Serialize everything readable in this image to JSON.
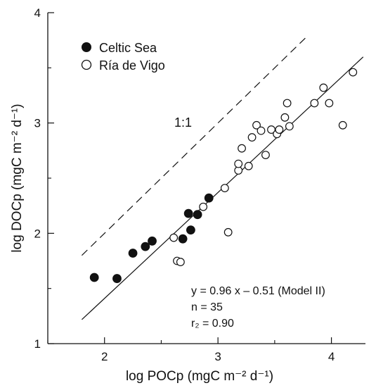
{
  "chart_data": {
    "type": "scatter",
    "xlabel": "log POCp (mgC m⁻² d⁻¹)",
    "ylabel": "log DOCp (mgC m⁻² d⁻¹)",
    "xlim": [
      1.5,
      4.3
    ],
    "ylim": [
      1.0,
      4.0
    ],
    "x_ticks": [
      2,
      3,
      4
    ],
    "y_ticks": [
      1,
      2,
      3,
      4
    ],
    "x_tick_labels": [
      "2",
      "3",
      "4"
    ],
    "y_tick_labels": [
      "1",
      "2",
      "3",
      "4"
    ],
    "grid": false,
    "legend_position": "top-left",
    "series": [
      {
        "name": "Celtic Sea",
        "marker": "filled-circle",
        "color": "#111111",
        "points": [
          [
            1.91,
            1.6
          ],
          [
            2.11,
            1.59
          ],
          [
            2.25,
            1.82
          ],
          [
            2.36,
            1.88
          ],
          [
            2.42,
            1.93
          ],
          [
            2.69,
            1.95
          ],
          [
            2.74,
            2.18
          ],
          [
            2.76,
            2.03
          ],
          [
            2.82,
            2.17
          ],
          [
            2.92,
            2.32
          ]
        ]
      },
      {
        "name": "Ría de Vigo",
        "marker": "open-circle",
        "color": "#111111",
        "points": [
          [
            2.61,
            1.96
          ],
          [
            2.64,
            1.75
          ],
          [
            2.67,
            1.74
          ],
          [
            2.87,
            2.24
          ],
          [
            3.06,
            2.41
          ],
          [
            3.09,
            2.01
          ],
          [
            3.18,
            2.57
          ],
          [
            3.18,
            2.63
          ],
          [
            3.21,
            2.77
          ],
          [
            3.27,
            2.61
          ],
          [
            3.3,
            2.87
          ],
          [
            3.34,
            2.98
          ],
          [
            3.38,
            2.93
          ],
          [
            3.42,
            2.71
          ],
          [
            3.47,
            2.94
          ],
          [
            3.52,
            2.9
          ],
          [
            3.54,
            2.94
          ],
          [
            3.59,
            3.05
          ],
          [
            3.61,
            3.18
          ],
          [
            3.63,
            2.97
          ],
          [
            3.85,
            3.18
          ],
          [
            3.93,
            3.32
          ],
          [
            3.98,
            3.18
          ],
          [
            4.1,
            2.98
          ],
          [
            4.19,
            3.46
          ]
        ]
      }
    ],
    "lines": [
      {
        "name": "fit",
        "style": "solid",
        "x": [
          1.8,
          4.28
        ],
        "y": [
          1.218,
          3.599
        ]
      },
      {
        "name": "1:1",
        "style": "dashed",
        "x": [
          1.8,
          3.77
        ],
        "y": [
          1.8,
          3.77
        ]
      }
    ],
    "annotations": {
      "ref_label": "1:1",
      "equation": "y = 0.96 x – 0.51 (Model II)",
      "n": "n = 35",
      "r2": "r₂ = 0.90"
    }
  }
}
